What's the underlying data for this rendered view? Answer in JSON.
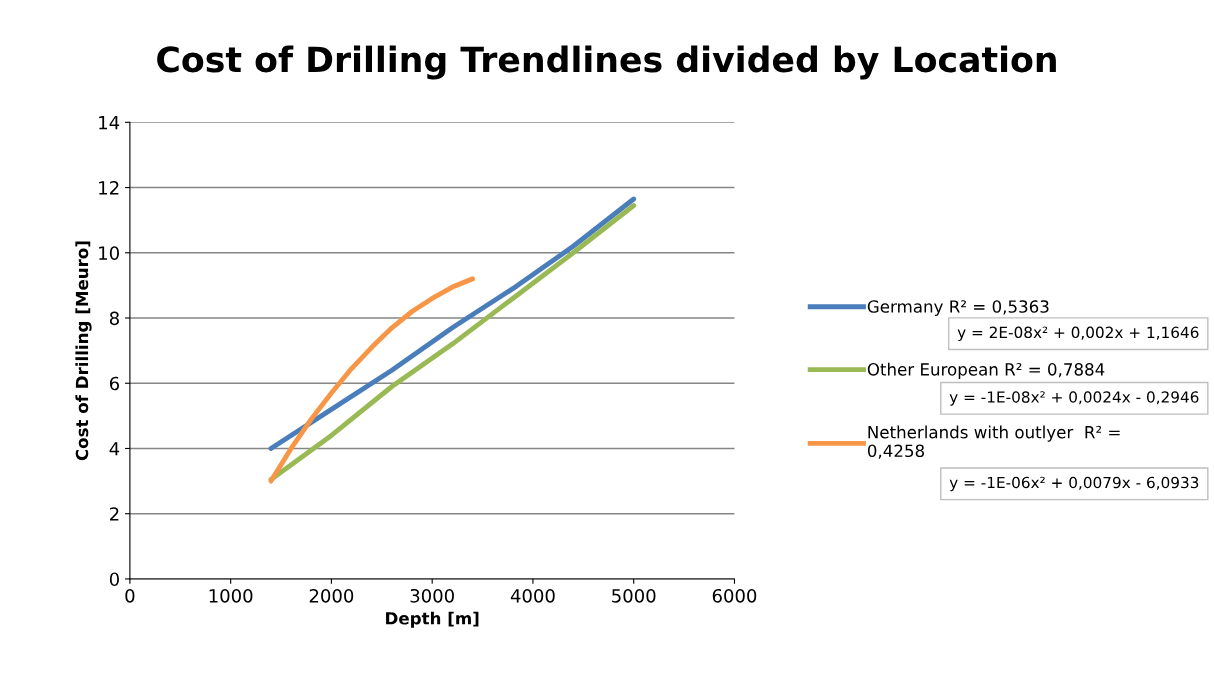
{
  "chart_data": {
    "type": "line",
    "title": "Cost of Drilling Trendlines divided by Location",
    "xlabel": "Depth [m]",
    "ylabel": "Cost of Drilling [Meuro]",
    "series": [
      {
        "name": "Germany R² = 0,5363",
        "color": "#4a7ebb",
        "x": [
          1400,
          2000,
          2600,
          3200,
          3800,
          4400,
          5000
        ],
        "values": [
          4.0,
          5.2,
          6.4,
          7.7,
          8.9,
          10.2,
          11.65
        ]
      },
      {
        "name": "Other European R² = 0,7884",
        "color": "#98b954",
        "x": [
          1400,
          2000,
          2600,
          3200,
          3800,
          4400,
          5000
        ],
        "values": [
          3.05,
          4.4,
          5.9,
          7.2,
          8.6,
          10.0,
          11.45
        ]
      },
      {
        "name": "Netherlands with outlyer  R² =\n0,4258",
        "color": "#f79646",
        "x": [
          1400,
          1600,
          1800,
          2000,
          2200,
          2400,
          2600,
          2800,
          3000,
          3200,
          3400
        ],
        "values": [
          3.0,
          4.0,
          4.9,
          5.7,
          6.45,
          7.1,
          7.7,
          8.2,
          8.6,
          8.95,
          9.2
        ]
      }
    ],
    "annotations": [
      "y = 2E-08x² + 0,002x + 1,1646",
      "y = -1E-08x² + 0,0024x - 0,2946",
      "y = -1E-06x² + 0,0079x - 6,0933"
    ],
    "xlim": [
      0,
      6000
    ],
    "xticks": [
      0,
      1000,
      2000,
      3000,
      4000,
      5000,
      6000
    ],
    "ylim": [
      0,
      14
    ],
    "yticks": [
      0,
      2,
      4,
      6,
      8,
      10,
      12,
      14
    ],
    "grid": "y",
    "legend": "right",
    "marker": "none",
    "line_style": "solid"
  }
}
